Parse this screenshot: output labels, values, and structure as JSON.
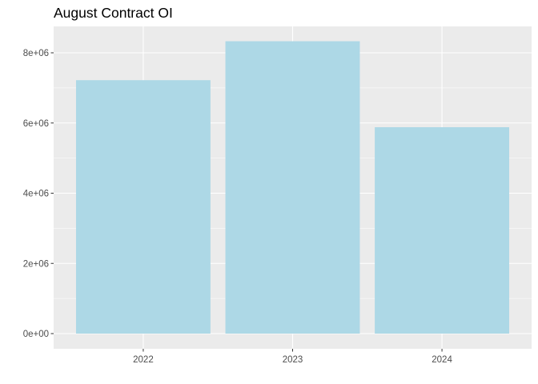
{
  "chart_data": {
    "type": "bar",
    "title": "August Contract OI",
    "xlabel": "",
    "ylabel": "",
    "categories": [
      "2022",
      "2023",
      "2024"
    ],
    "values": [
      7220000,
      8330000,
      5880000
    ],
    "ylim": [
      0,
      8750000
    ],
    "yticks": [
      0,
      2000000,
      4000000,
      6000000,
      8000000
    ],
    "ytick_labels": [
      "0e+00",
      "2e+06",
      "4e+06",
      "6e+06",
      "8e+06"
    ],
    "grid": true,
    "legend": "none",
    "colors": {
      "bar_fill": "#ADD8E6",
      "panel_background": "#EBEBEB",
      "grid_line": "#FFFFFF",
      "tick_text": "#4D4D4D",
      "tick_mark": "#333333"
    }
  }
}
